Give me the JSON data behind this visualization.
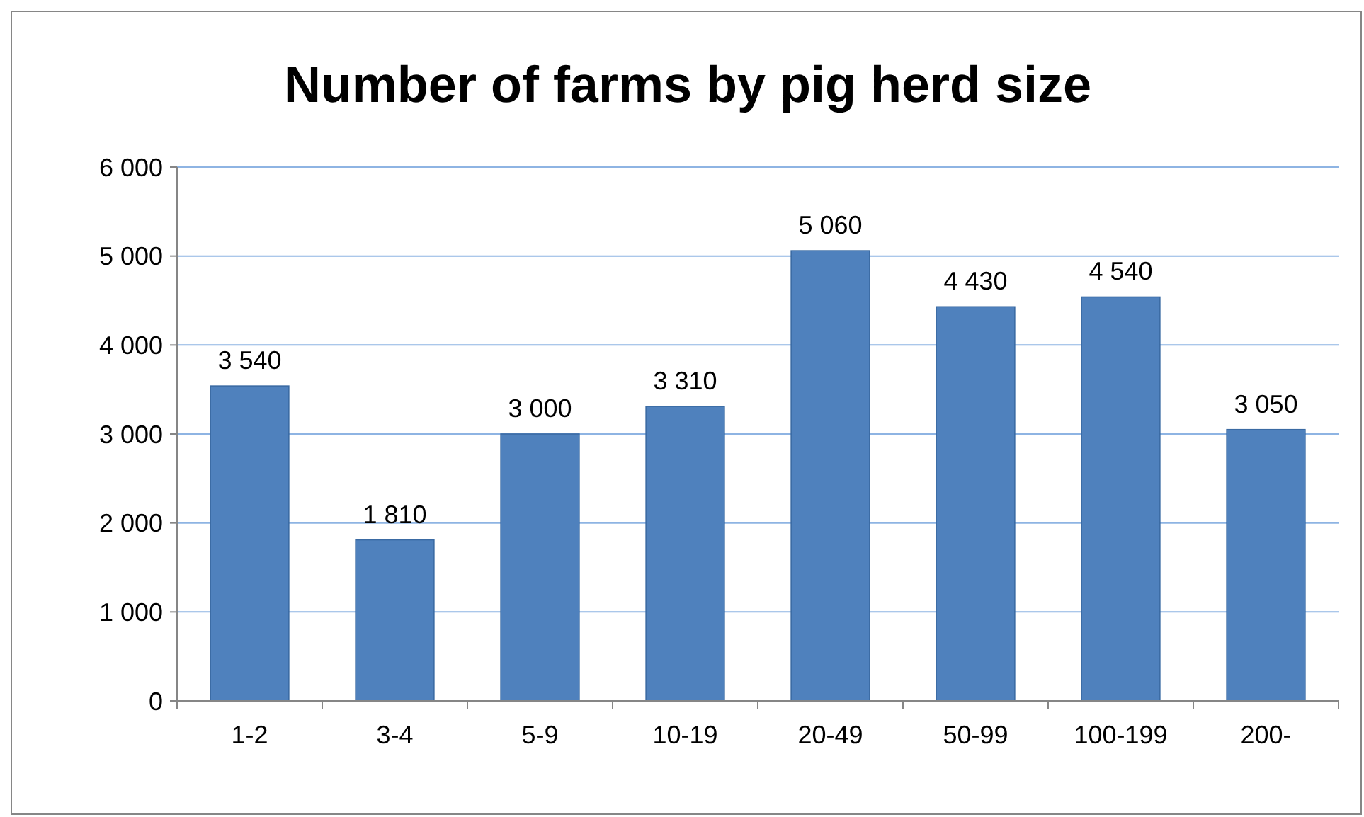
{
  "chart_data": {
    "type": "bar",
    "title": "Number of farms by pig herd size",
    "categories": [
      "1-2",
      "3-4",
      "5-9",
      "10-19",
      "20-49",
      "50-99",
      "100-199",
      "200-"
    ],
    "values": [
      3540,
      1810,
      3000,
      3310,
      5060,
      4430,
      4540,
      3050
    ],
    "value_labels": [
      "3 540",
      "1 810",
      "3 000",
      "3 310",
      "5 060",
      "4 430",
      "4 540",
      "3 050"
    ],
    "color": "#4f81bd",
    "ylim": [
      0,
      6000
    ],
    "yticks": [
      {
        "value": 0,
        "label": "0"
      },
      {
        "value": 1000,
        "label": "1 000"
      },
      {
        "value": 2000,
        "label": "2 000"
      },
      {
        "value": 3000,
        "label": "3 000"
      },
      {
        "value": 4000,
        "label": "4 000"
      },
      {
        "value": 5000,
        "label": "5 000"
      },
      {
        "value": 6000,
        "label": "6 000"
      }
    ],
    "grid": "y"
  }
}
